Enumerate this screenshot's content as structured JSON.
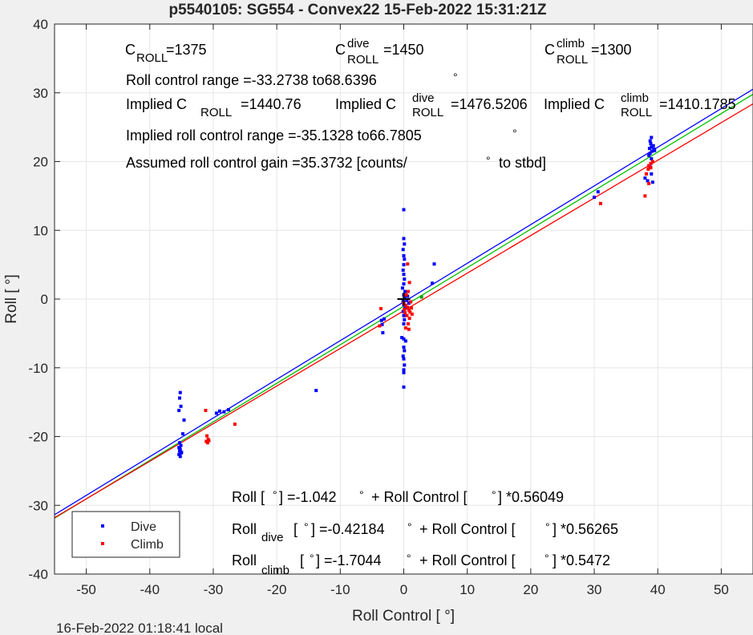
{
  "chart_data": {
    "type": "scatter",
    "title": "p5540105: SG554 - Convex22 15-Feb-2022 15:31:21Z",
    "xlabel": "Roll Control [   °]",
    "ylabel": "Roll [  °]",
    "xlim": [
      -55,
      55
    ],
    "ylim": [
      -40,
      40
    ],
    "xticks": [
      -50,
      -40,
      -30,
      -20,
      -10,
      0,
      10,
      20,
      30,
      40,
      50
    ],
    "yticks": [
      -40,
      -30,
      -20,
      -10,
      0,
      10,
      20,
      30,
      40
    ],
    "grid": true,
    "footer": "16-Feb-2022 01:18:41 local",
    "legend": {
      "position": "bottom-left",
      "entries": [
        {
          "name": "Dive",
          "color": "#0000ff"
        },
        {
          "name": "Climb",
          "color": "#ff0000"
        }
      ]
    },
    "fit_lines": [
      {
        "color": "#0000ff",
        "intercept": -0.42184,
        "slope": 0.56265
      },
      {
        "color": "#00c000",
        "intercept": -1.042,
        "slope": 0.56049
      },
      {
        "color": "#ff0000",
        "intercept": -1.7044,
        "slope": 0.5472
      }
    ],
    "series": [
      {
        "name": "Dive",
        "color": "#0000ff",
        "points": [
          [
            -35.2,
            -13.6
          ],
          [
            -35.3,
            -14.4
          ],
          [
            -35.4,
            -16.2
          ],
          [
            -35.1,
            -15.6
          ],
          [
            -34.6,
            -17.6
          ],
          [
            -34.8,
            -19.6
          ],
          [
            -35.3,
            -20.9
          ],
          [
            -35.1,
            -21.3
          ],
          [
            -35.4,
            -21.6
          ],
          [
            -35.2,
            -21.9
          ],
          [
            -35.3,
            -22.1
          ],
          [
            -35.1,
            -22.4
          ],
          [
            -35.4,
            -22.6
          ],
          [
            -35.2,
            -22.9
          ],
          [
            -35.0,
            -22.3
          ],
          [
            -35.3,
            -21.7
          ],
          [
            -29.5,
            -16.6
          ],
          [
            -29.0,
            -16.3
          ],
          [
            -28.3,
            -16.4
          ],
          [
            -27.6,
            -16.1
          ],
          [
            -13.8,
            -13.3
          ],
          [
            -3.5,
            -3.1
          ],
          [
            -3.4,
            -3.7
          ],
          [
            -3.3,
            -4.9
          ],
          [
            -3.1,
            -2.9
          ],
          [
            0.0,
            13.0
          ],
          [
            0.0,
            8.8
          ],
          [
            0.1,
            8.0
          ],
          [
            -0.1,
            7.2
          ],
          [
            0.0,
            6.3
          ],
          [
            0.1,
            5.8
          ],
          [
            0.0,
            5.0
          ],
          [
            -0.1,
            4.2
          ],
          [
            0.0,
            3.6
          ],
          [
            0.1,
            2.9
          ],
          [
            0.0,
            2.2
          ],
          [
            -0.2,
            1.6
          ],
          [
            0.2,
            1.1
          ],
          [
            0.0,
            0.6
          ],
          [
            0.1,
            0.2
          ],
          [
            -0.1,
            -0.3
          ],
          [
            0.0,
            -0.8
          ],
          [
            0.2,
            -1.3
          ],
          [
            -0.1,
            -1.8
          ],
          [
            0.0,
            -2.4
          ],
          [
            0.1,
            -3.0
          ],
          [
            0.0,
            -3.6
          ],
          [
            -0.3,
            -5.6
          ],
          [
            0.0,
            -5.8
          ],
          [
            0.3,
            -6.1
          ],
          [
            0.0,
            -7.0
          ],
          [
            0.1,
            -7.5
          ],
          [
            -0.1,
            -8.3
          ],
          [
            0.0,
            -8.7
          ],
          [
            0.1,
            -9.6
          ],
          [
            0.0,
            -10.3
          ],
          [
            0.0,
            -10.7
          ],
          [
            0.0,
            -12.8
          ],
          [
            0.5,
            -0.2
          ],
          [
            0.6,
            0.4
          ],
          [
            0.8,
            -0.6
          ],
          [
            4.5,
            2.3
          ],
          [
            4.8,
            5.1
          ],
          [
            30.0,
            14.8
          ],
          [
            30.6,
            15.6
          ],
          [
            38.0,
            17.6
          ],
          [
            38.4,
            17.2
          ],
          [
            38.8,
            19.2
          ],
          [
            39.0,
            20.4
          ],
          [
            39.2,
            17.0
          ],
          [
            39.0,
            18.2
          ],
          [
            38.6,
            20.9
          ],
          [
            38.8,
            21.2
          ],
          [
            39.1,
            21.5
          ],
          [
            39.4,
            21.8
          ],
          [
            39.0,
            22.1
          ],
          [
            38.9,
            22.6
          ],
          [
            39.3,
            22.3
          ],
          [
            38.8,
            23.0
          ],
          [
            39.0,
            23.5
          ],
          [
            39.5,
            21.6
          ],
          [
            38.7,
            21.9
          ]
        ]
      },
      {
        "name": "Climb",
        "color": "#ff0000",
        "points": [
          [
            -31.2,
            -16.2
          ],
          [
            -31.0,
            -19.9
          ],
          [
            -30.8,
            -20.4
          ],
          [
            -31.1,
            -20.7
          ],
          [
            -30.9,
            -20.9
          ],
          [
            -30.7,
            -20.6
          ],
          [
            -26.6,
            -18.2
          ],
          [
            -3.8,
            -3.9
          ],
          [
            -3.6,
            -1.4
          ],
          [
            0.0,
            -0.6
          ],
          [
            0.3,
            -0.9
          ],
          [
            0.6,
            -1.2
          ],
          [
            0.8,
            -1.6
          ],
          [
            1.0,
            -1.9
          ],
          [
            0.5,
            -2.4
          ],
          [
            0.2,
            -2.0
          ],
          [
            0.7,
            -3.6
          ],
          [
            0.9,
            -2.8
          ],
          [
            1.1,
            -0.4
          ],
          [
            0.4,
            0.6
          ],
          [
            0.7,
            1.1
          ],
          [
            0.9,
            2.4
          ],
          [
            0.6,
            5.1
          ],
          [
            0.3,
            -4.2
          ],
          [
            0.8,
            -4.4
          ],
          [
            1.2,
            -1.3
          ],
          [
            0.1,
            -1.5
          ],
          [
            1.3,
            -2.2
          ],
          [
            31.0,
            13.9
          ],
          [
            38.0,
            15.0
          ],
          [
            38.6,
            16.8
          ],
          [
            38.2,
            18.2
          ],
          [
            38.6,
            19.4
          ],
          [
            38.9,
            19.7
          ],
          [
            39.2,
            20.0
          ],
          [
            38.5,
            18.9
          ],
          [
            38.9,
            19.1
          ]
        ]
      },
      {
        "name": "",
        "color": "#00a000",
        "points": [
          [
            2.8,
            0.3
          ]
        ]
      }
    ],
    "annotations": {
      "c_roll": {
        "c": "C",
        "sub": "ROLL",
        "value": "=1375"
      },
      "c_roll_dive": {
        "c": "C",
        "sup": "dive",
        "sub": "ROLL",
        "value": "=1450"
      },
      "c_roll_climb": {
        "c": "C",
        "sup": "climb",
        "sub": "ROLL",
        "value": "=1300"
      },
      "range": "Roll control range =-33.2738 to68.6396",
      "implied": {
        "label": "Implied C",
        "sub": "ROLL",
        "value": "=1440.76"
      },
      "implied_dive": {
        "label": "Implied C",
        "sup": "dive",
        "sub": "ROLL",
        "value": "=1476.5206"
      },
      "implied_climb": {
        "label": "Implied C",
        "sup": "climb",
        "sub": "ROLL",
        "value": "=1410.1785"
      },
      "implied_range": "Implied roll control range =-35.1328 to66.7805",
      "gain_prefix": "Assumed roll control gain =35.3732 [counts/",
      "gain_suffix": "to stbd]",
      "degree": "°",
      "eq_all": {
        "a": "Roll [",
        "b": "] =-1.042",
        "c": "+ Roll Control [",
        "d": "] *0.56049"
      },
      "eq_dive": {
        "a": "Roll",
        "sub": "dive",
        "b": "[",
        "c": "] =-0.42184",
        "d": "+ Roll Control [",
        "e": "] *0.56265"
      },
      "eq_climb": {
        "a": "Roll",
        "sub": "climb",
        "b": "[",
        "c": "] =-1.7044",
        "d": "+ Roll Control [",
        "e": "] *0.5472"
      }
    }
  }
}
